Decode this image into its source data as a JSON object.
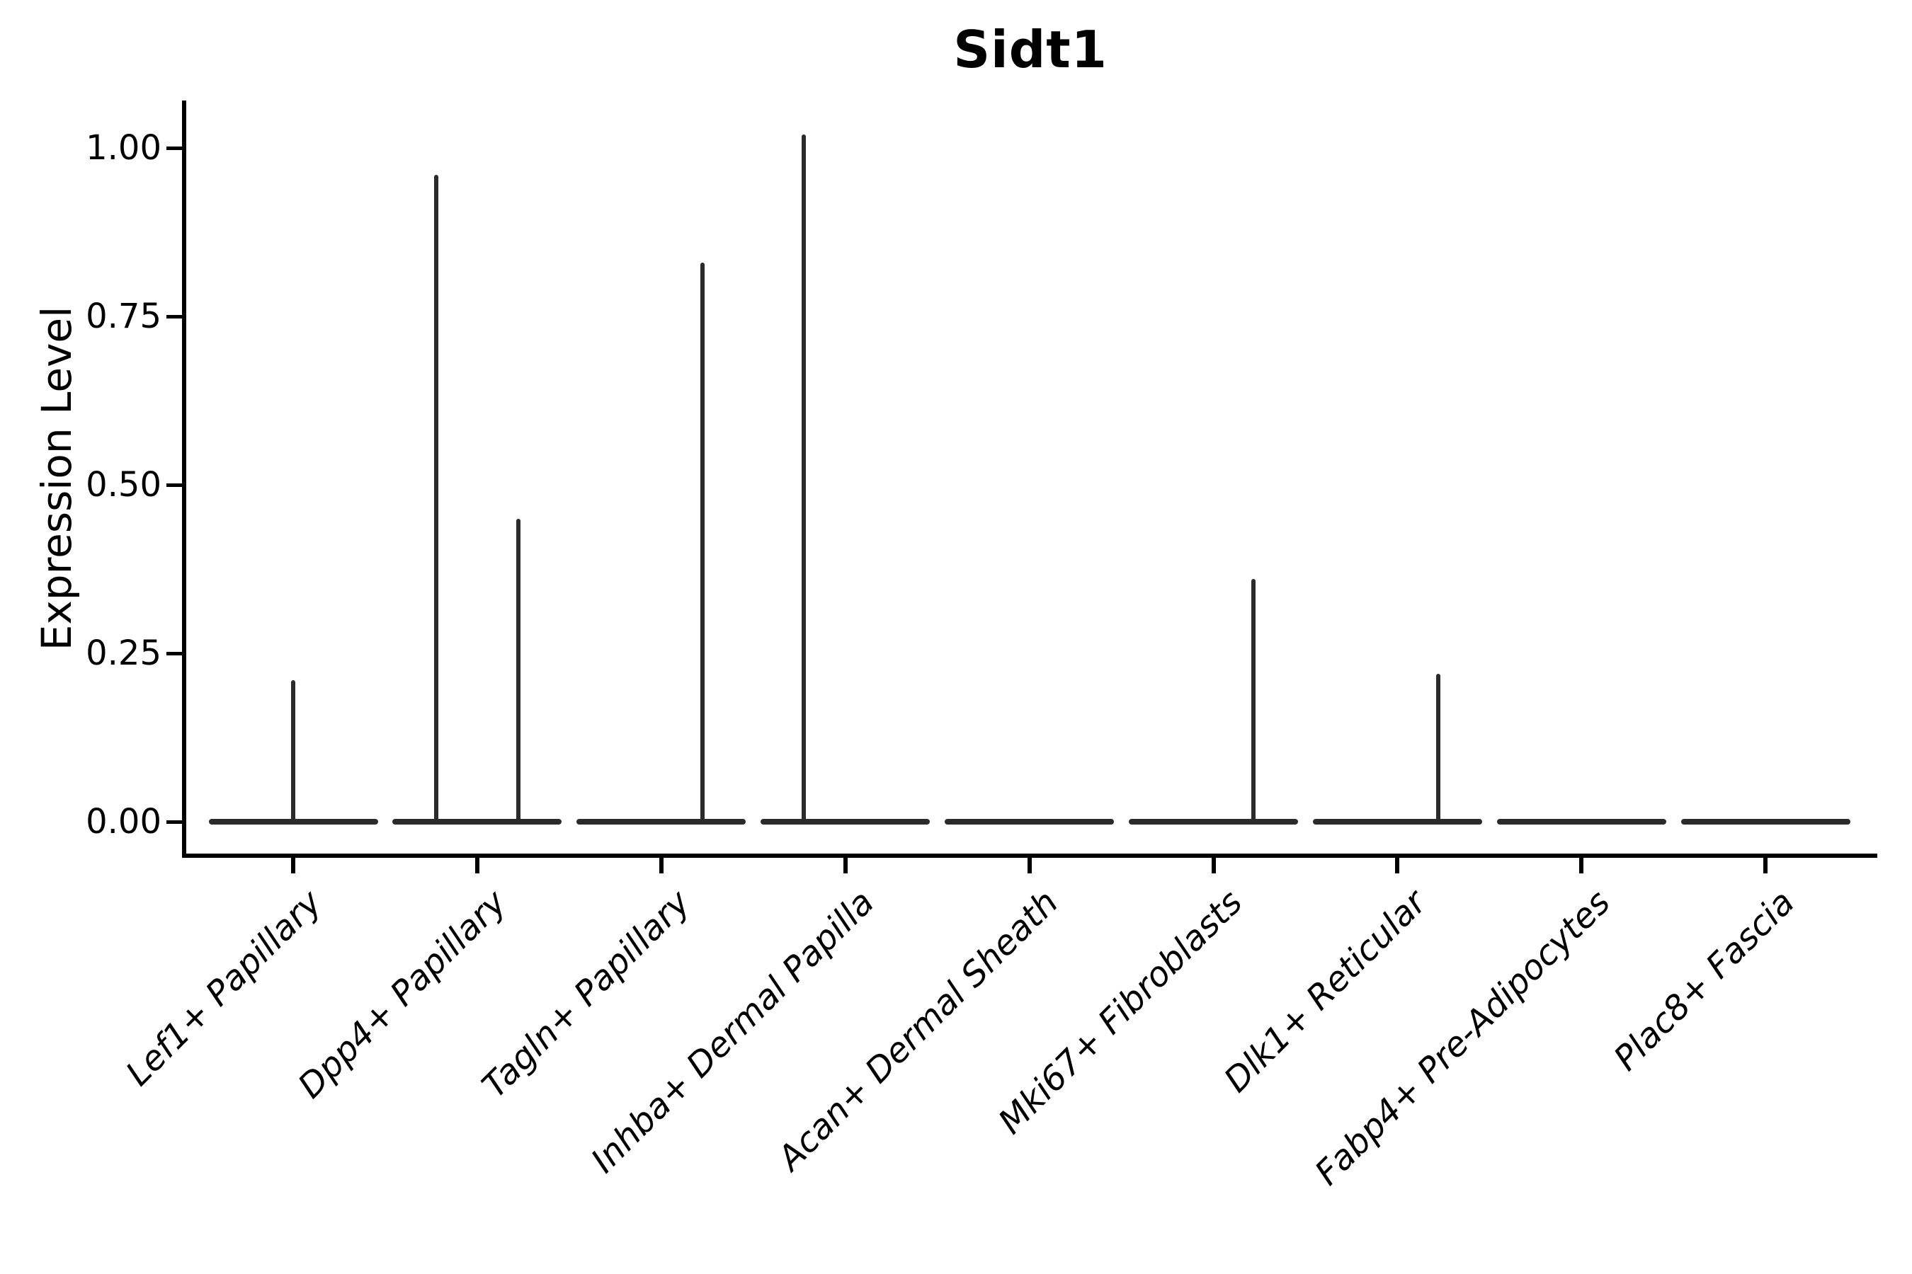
{
  "figure": {
    "title": "Sidt1",
    "y_axis_label": "Expression Level"
  },
  "chart_data": {
    "type": "violin",
    "title": "Sidt1",
    "xlabel": "",
    "ylabel": "Expression Level",
    "ylim": [
      0,
      1.07
    ],
    "grid": false,
    "legend": null,
    "yticks": [
      {
        "value": 0.0,
        "label": "0.00"
      },
      {
        "value": 0.25,
        "label": "0.25"
      },
      {
        "value": 0.5,
        "label": "0.50"
      },
      {
        "value": 0.75,
        "label": "0.75"
      },
      {
        "value": 1.0,
        "label": "1.00"
      }
    ],
    "categories": [
      "Lef1+ Papillary",
      "Dpp4+ Papillary",
      "Tagln+ Papillary",
      "Inhba+ Dermal Papilla",
      "Acan+ Dermal Sheath",
      "Mki67+ Fibroblasts",
      "Dlk1+ Reticular",
      "Fabp4+ Pre-Adipocytes",
      "Plac8+ Fascia"
    ],
    "violins": [
      {
        "category": "Lef1+ Papillary",
        "baseline": 0,
        "spikes": [
          {
            "offset_frac": 0.0,
            "max": 0.21
          }
        ]
      },
      {
        "category": "Dpp4+ Papillary",
        "baseline": 0,
        "spikes": [
          {
            "offset_frac": -0.223,
            "max": 0.96
          },
          {
            "offset_frac": 0.223,
            "max": 0.45
          }
        ]
      },
      {
        "category": "Tagln+ Papillary",
        "baseline": 0,
        "spikes": [
          {
            "offset_frac": 0.223,
            "max": 0.83
          }
        ]
      },
      {
        "category": "Inhba+ Dermal Papilla",
        "baseline": 0,
        "spikes": [
          {
            "offset_frac": -0.227,
            "max": 1.02
          }
        ]
      },
      {
        "category": "Acan+ Dermal Sheath",
        "baseline": 0,
        "spikes": []
      },
      {
        "category": "Mki67+ Fibroblasts",
        "baseline": 0,
        "spikes": [
          {
            "offset_frac": 0.219,
            "max": 0.36
          }
        ]
      },
      {
        "category": "Dlk1+ Reticular",
        "baseline": 0,
        "spikes": [
          {
            "offset_frac": 0.223,
            "max": 0.22
          }
        ]
      },
      {
        "category": "Fabp4+ Pre-Adipocytes",
        "baseline": 0,
        "spikes": []
      },
      {
        "category": "Plac8+ Fascia",
        "baseline": 0,
        "spikes": []
      }
    ],
    "style": {
      "violin_color": "#2b2b2b",
      "axis_color": "#000000",
      "text_color": "#000000",
      "background": "#ffffff"
    }
  }
}
